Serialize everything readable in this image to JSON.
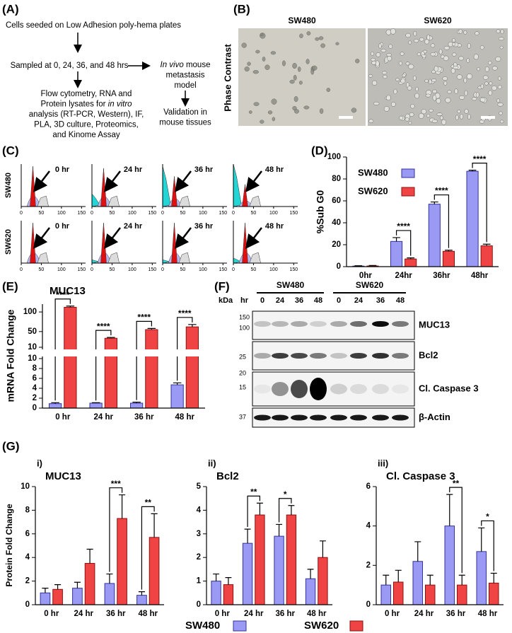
{
  "panel_labels": [
    "(A)",
    "(B)",
    "(C)",
    "(D)",
    "(E)",
    "(F)",
    "(G)"
  ],
  "panel_a": {
    "blocks": [
      {
        "lines": [
          [
            {
              "text": "Cells seeded on Low Adhesion poly-hema plates"
            }
          ]
        ]
      },
      {
        "lines": [
          [
            {
              "text": "Sampled at 0, 24, 36, and 48 hrs"
            }
          ]
        ]
      },
      {
        "lines": [
          [
            {
              "text": "Flow cytometry, RNA and"
            }
          ],
          [
            {
              "text": "Protein lysates for "
            },
            {
              "text": "in vitro",
              "style": "italic"
            }
          ],
          [
            {
              "text": "analysis (RT-PCR, Western), IF,"
            }
          ],
          [
            {
              "text": "PLA, 3D culture, Proteomics,"
            }
          ],
          [
            {
              "text": "and Kinome Assay"
            }
          ]
        ]
      },
      {
        "lines": [
          [
            {
              "text": "In vivo",
              "style": "italic"
            },
            {
              "text": " mouse"
            }
          ],
          [
            {
              "text": "metastasis"
            }
          ],
          [
            {
              "text": "model"
            }
          ]
        ]
      },
      {
        "lines": [
          [
            {
              "text": "Validation in"
            }
          ],
          [
            {
              "text": "mouse tissues"
            }
          ]
        ]
      }
    ]
  },
  "panel_b": {
    "columns": [
      "SW480",
      "SW620"
    ],
    "row_label": "Phase Contrast"
  },
  "panel_c": {
    "rows": [
      "SW480",
      "SW620"
    ],
    "times": [
      "0 hr",
      "24 hr",
      "36 hr",
      "48 hr"
    ],
    "xlim": [
      0,
      160
    ],
    "xticks": [
      0,
      50,
      100,
      150
    ]
  },
  "panel_f": {
    "kda_label": "kDa",
    "hr_label": "hr",
    "groups": [
      {
        "name": "SW480",
        "lanes": [
          "0",
          "24",
          "36",
          "48"
        ]
      },
      {
        "name": "SW620",
        "lanes": [
          "0",
          "24",
          "36",
          "48"
        ]
      }
    ],
    "blots": [
      {
        "name": "MUC13",
        "markers": [
          "150",
          "100"
        ]
      },
      {
        "name": "Bcl2",
        "markers": [
          "25"
        ]
      },
      {
        "name": "Cl. Caspase 3",
        "markers": [
          "20",
          "15"
        ]
      },
      {
        "name": "β-Actin",
        "markers": [
          "37"
        ]
      }
    ]
  },
  "chart_data": [
    {
      "type": "bar",
      "ylabel": "%Sub G0",
      "categories": [
        "0hr",
        "24hr",
        "36hr",
        "48hr"
      ],
      "series": [
        {
          "name": "SW480",
          "color": "#9a9af5",
          "values": [
            0.5,
            23,
            57,
            87
          ],
          "errors": [
            0.3,
            3.5,
            2,
            1
          ]
        },
        {
          "name": "SW620",
          "color": "#f04444",
          "values": [
            0.6,
            7,
            14,
            19
          ],
          "errors": [
            0.5,
            1,
            1,
            1.5
          ]
        }
      ],
      "ylim": [
        0,
        100
      ],
      "yticks": [
        0,
        20,
        40,
        60,
        80,
        100
      ],
      "significance": [
        null,
        "****",
        "****",
        "****"
      ],
      "legend": "upper left"
    },
    {
      "type": "broken-bar",
      "title": "MUC13",
      "ylabel": "mRNA Fold Change",
      "categories": [
        "0 hr",
        "24 hr",
        "36 hr",
        "48 hr"
      ],
      "series": [
        {
          "color": "#9a9af5",
          "values": [
            0.9,
            1.0,
            1.0,
            4.7
          ],
          "errors": [
            0.2,
            0.1,
            0.2,
            0.4
          ]
        },
        {
          "color": "#f04444",
          "values": [
            112,
            33,
            55,
            62
          ],
          "errors": [
            3,
            2,
            3,
            6
          ]
        }
      ],
      "segments": [
        {
          "ylim": [
            0,
            10
          ],
          "yticks": [
            0,
            2,
            4,
            6,
            8,
            10
          ]
        },
        {
          "ylim": [
            10,
            120
          ],
          "yticks": [
            10,
            50,
            100
          ]
        }
      ],
      "significance": [
        "****",
        "****",
        "****",
        "****"
      ]
    },
    {
      "type": "bar-panels",
      "ylabel": "Protein Fold Change",
      "categories": [
        "0 hr",
        "24 hr",
        "36 hr",
        "48 hr"
      ],
      "series": [
        {
          "name": "SW480",
          "color": "#9a9af5"
        },
        {
          "name": "SW620",
          "color": "#f04444"
        }
      ],
      "legend": "bottom",
      "panels": [
        {
          "label": "i)",
          "title": "MUC13",
          "ylim": [
            0,
            10
          ],
          "yticks": [
            0,
            2,
            4,
            6,
            8,
            10
          ],
          "series": [
            {
              "values": [
                1.0,
                1.4,
                1.8,
                0.8
              ],
              "errors": [
                0.4,
                0.5,
                0.8,
                0.3
              ]
            },
            {
              "values": [
                1.3,
                3.5,
                7.3,
                5.7
              ],
              "errors": [
                0.4,
                1.2,
                2.0,
                2.0
              ]
            }
          ],
          "significance": [
            null,
            null,
            "***",
            "**"
          ]
        },
        {
          "label": "ii)",
          "title": "Bcl2",
          "ylim": [
            0,
            5
          ],
          "yticks": [
            0,
            1,
            2,
            3,
            4,
            5
          ],
          "series": [
            {
              "values": [
                1.0,
                2.6,
                2.9,
                1.1
              ],
              "errors": [
                0.3,
                0.6,
                0.5,
                0.4
              ]
            },
            {
              "values": [
                0.85,
                3.8,
                3.8,
                2.0
              ],
              "errors": [
                0.3,
                0.5,
                0.4,
                0.7
              ]
            }
          ],
          "significance": [
            null,
            "**",
            "*",
            null
          ]
        },
        {
          "label": "iii)",
          "title": "Cl. Caspase 3",
          "ylim": [
            0,
            6
          ],
          "yticks": [
            0,
            2,
            4,
            6
          ],
          "series": [
            {
              "values": [
                1.0,
                2.2,
                4.0,
                2.7
              ],
              "errors": [
                0.5,
                1.0,
                1.6,
                1.2
              ]
            },
            {
              "values": [
                1.15,
                1.0,
                1.0,
                1.1
              ],
              "errors": [
                0.6,
                0.5,
                0.5,
                0.5
              ]
            }
          ],
          "significance": [
            null,
            null,
            "**",
            "*"
          ]
        }
      ]
    }
  ]
}
